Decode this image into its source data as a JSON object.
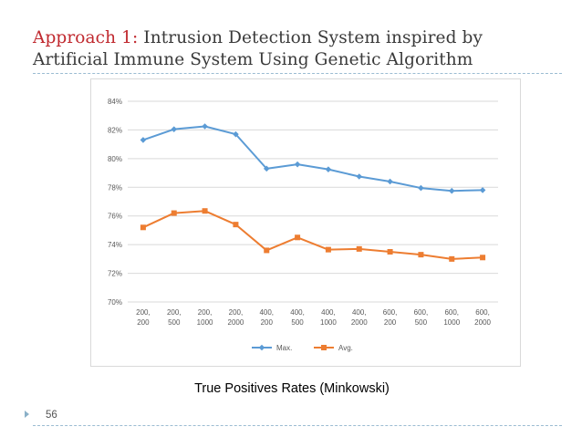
{
  "slide": {
    "title_accent": "Approach 1:",
    "title_rest_line1": " Intrusion Detection System inspired by",
    "title_line2": "Artificial Immune System Using Genetic Algorithm",
    "caption": "True Positives Rates (Minkowski)",
    "page_number": "56"
  },
  "colors": {
    "max_series": "#5b9bd5",
    "avg_series": "#ed7d31",
    "gridline": "#d9d9d9",
    "axis_text": "#595959"
  },
  "chart_data": {
    "type": "line",
    "title": "",
    "xlabel": "",
    "ylabel": "",
    "ylim": [
      70,
      84
    ],
    "y_ticks": [
      70,
      72,
      74,
      76,
      78,
      80,
      82,
      84
    ],
    "y_tick_labels": [
      "70%",
      "72%",
      "74%",
      "76%",
      "78%",
      "80%",
      "82%",
      "84%"
    ],
    "grid": true,
    "legend": "bottom",
    "categories": [
      [
        "200,",
        "200"
      ],
      [
        "200,",
        "500"
      ],
      [
        "200,",
        "1000"
      ],
      [
        "200,",
        "2000"
      ],
      [
        "400,",
        "200"
      ],
      [
        "400,",
        "500"
      ],
      [
        "400,",
        "1000"
      ],
      [
        "400,",
        "2000"
      ],
      [
        "600,",
        "200"
      ],
      [
        "600,",
        "500"
      ],
      [
        "600,",
        "1000"
      ],
      [
        "600,",
        "2000"
      ]
    ],
    "series": [
      {
        "name": "Max.",
        "marker": "diamond",
        "values": [
          81.3,
          82.05,
          82.25,
          81.7,
          79.3,
          79.6,
          79.25,
          78.75,
          78.4,
          77.95,
          77.75,
          77.8
        ]
      },
      {
        "name": "Avg.",
        "marker": "square",
        "values": [
          75.2,
          76.2,
          76.35,
          75.4,
          73.6,
          74.5,
          73.65,
          73.7,
          73.5,
          73.3,
          73.0,
          73.1
        ]
      }
    ]
  }
}
